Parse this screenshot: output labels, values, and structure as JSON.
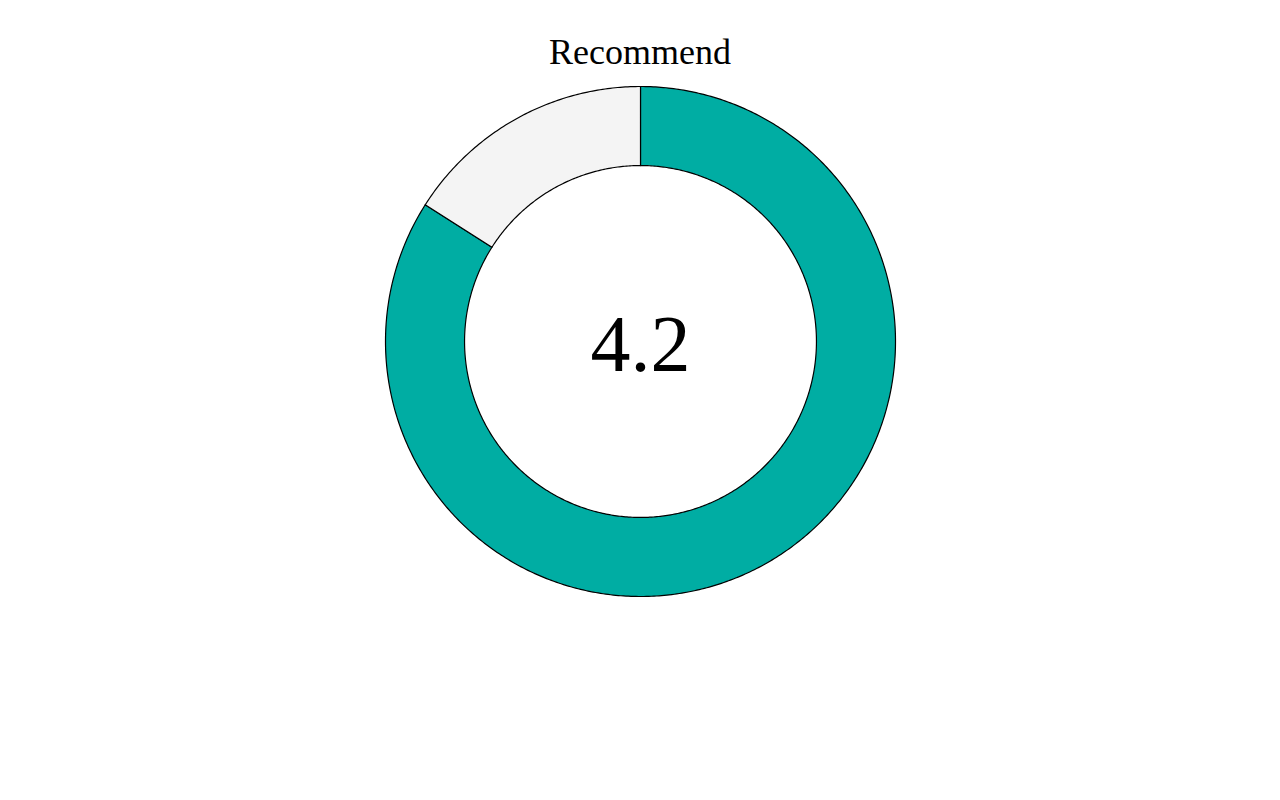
{
  "chart_data": {
    "type": "donut",
    "title": "Recommend",
    "categories": [
      null,
      null
    ],
    "values": [
      4.2,
      0.8
    ],
    "colors": [
      "#00ADA3",
      "#F4F4F4"
    ],
    "annotation": "4.2"
  }
}
